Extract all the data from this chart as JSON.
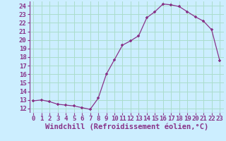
{
  "x": [
    0,
    1,
    2,
    3,
    4,
    5,
    6,
    7,
    8,
    9,
    10,
    11,
    12,
    13,
    14,
    15,
    16,
    17,
    18,
    19,
    20,
    21,
    22,
    23
  ],
  "y": [
    12.9,
    13.0,
    12.8,
    12.5,
    12.4,
    12.3,
    12.1,
    11.9,
    13.2,
    16.0,
    17.7,
    19.4,
    19.9,
    20.5,
    22.6,
    23.3,
    24.2,
    24.1,
    23.9,
    23.3,
    22.7,
    22.2,
    21.2,
    17.6
  ],
  "xlabel": "Windchill (Refroidissement éolien,°C)",
  "xlim": [
    -0.5,
    23.5
  ],
  "ylim": [
    11.5,
    24.5
  ],
  "yticks": [
    12,
    13,
    14,
    15,
    16,
    17,
    18,
    19,
    20,
    21,
    22,
    23,
    24
  ],
  "xticks": [
    0,
    1,
    2,
    3,
    4,
    5,
    6,
    7,
    8,
    9,
    10,
    11,
    12,
    13,
    14,
    15,
    16,
    17,
    18,
    19,
    20,
    21,
    22,
    23
  ],
  "line_color": "#883388",
  "marker": "+",
  "bg_color": "#cceeff",
  "grid_color": "#aaddcc",
  "tick_label_fontsize": 6.5,
  "xlabel_fontsize": 7.5
}
